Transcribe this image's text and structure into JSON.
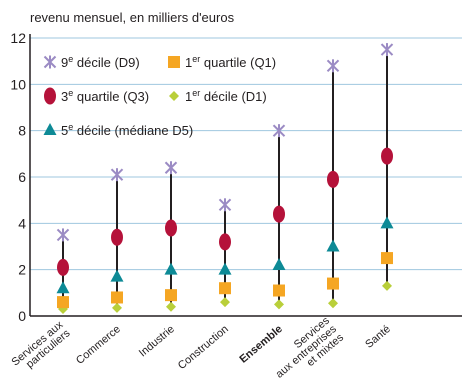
{
  "chart_data": {
    "type": "scatter",
    "ylabel": "revenu mensuel, en milliers d'euros",
    "ylim": [
      0,
      12
    ],
    "yticks": [
      0,
      2,
      4,
      6,
      8,
      10,
      12
    ],
    "grid": "horizontal",
    "legend_placement": "top-left",
    "categories": [
      {
        "label_lines": [
          "Services aux",
          "particuliers"
        ],
        "bold": false
      },
      {
        "label_lines": [
          "Commerce"
        ],
        "bold": false
      },
      {
        "label_lines": [
          "Industrie"
        ],
        "bold": false
      },
      {
        "label_lines": [
          "Construction"
        ],
        "bold": false
      },
      {
        "label_lines": [
          "Ensemble"
        ],
        "bold": true
      },
      {
        "label_lines": [
          "Services",
          "aux entreprises",
          "et mixtes"
        ],
        "bold": false
      },
      {
        "label_lines": [
          "Santé"
        ],
        "bold": false
      }
    ],
    "series": [
      {
        "key": "D9",
        "marker": "x",
        "color": "#9b8bc4",
        "legend_parts": [
          "9",
          "e",
          " décile (D9)"
        ],
        "values": [
          3.5,
          6.1,
          6.4,
          4.8,
          8.0,
          10.8,
          11.5
        ]
      },
      {
        "key": "Q3",
        "marker": "ellipse",
        "color": "#b5123a",
        "legend_parts": [
          "3",
          "e",
          " quartile (Q3)"
        ],
        "values": [
          2.1,
          3.4,
          3.8,
          3.2,
          4.4,
          5.9,
          6.9
        ]
      },
      {
        "key": "D5",
        "marker": "triangle",
        "color": "#0d8a96",
        "legend_parts": [
          "5",
          "e",
          " décile (médiane D5)"
        ],
        "values": [
          1.2,
          1.7,
          2.0,
          2.0,
          2.2,
          3.0,
          4.0
        ]
      },
      {
        "key": "Q1",
        "marker": "square",
        "color": "#f5a623",
        "legend_parts": [
          "1",
          "er",
          " quartile (Q1)"
        ],
        "values": [
          0.6,
          0.8,
          0.9,
          1.2,
          1.1,
          1.4,
          2.5
        ]
      },
      {
        "key": "D1",
        "marker": "diamond",
        "color": "#b9cf3a",
        "legend_parts": [
          "1",
          "er",
          " décile (D1)"
        ],
        "values": [
          0.3,
          0.35,
          0.4,
          0.6,
          0.5,
          0.55,
          1.3
        ]
      }
    ]
  }
}
